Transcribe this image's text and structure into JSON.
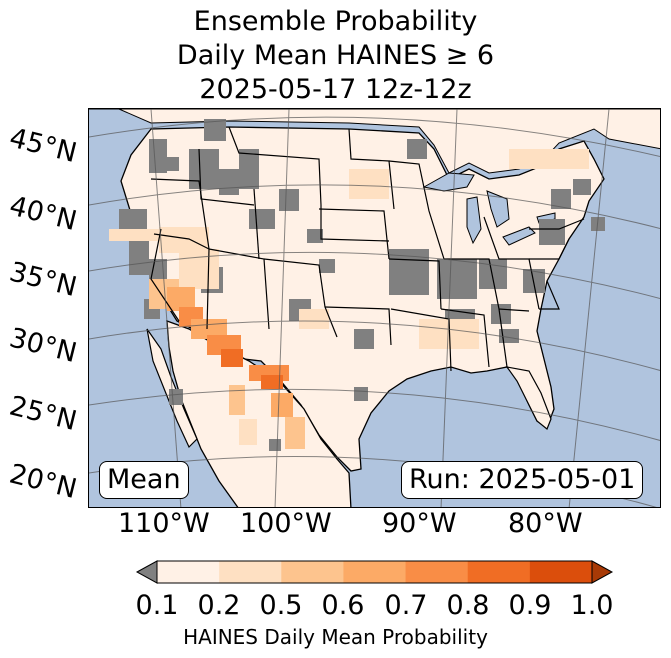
{
  "title": {
    "line1": "Ensemble Probability",
    "line2": "Daily Mean HAINES ≥ 6",
    "line3": "2025-05-17 12z-12z"
  },
  "lat_labels": [
    "45°N",
    "40°N",
    "35°N",
    "30°N",
    "25°N",
    "20°N"
  ],
  "lon_labels": [
    "110°W",
    "100°W",
    "90°W",
    "80°W"
  ],
  "mean_label": "Mean",
  "run_label": "Run: 2025-05-01",
  "colorbar": {
    "ticks": [
      "0.1",
      "0.2",
      "0.5",
      "0.6",
      "0.7",
      "0.8",
      "0.9",
      "1.0"
    ],
    "label": "HAINES Daily Mean Probability",
    "under_color": "#808080",
    "colors": [
      "#fff1e6",
      "#fee0c2",
      "#fdc48e",
      "#fcaa66",
      "#f98d46",
      "#f06d24",
      "#db4e0c"
    ],
    "over_color": "#a83a06"
  },
  "map_colors": {
    "ocean": "#b0c4de",
    "land_base": "#fff1e6",
    "no_data_gray": "#808080"
  }
}
